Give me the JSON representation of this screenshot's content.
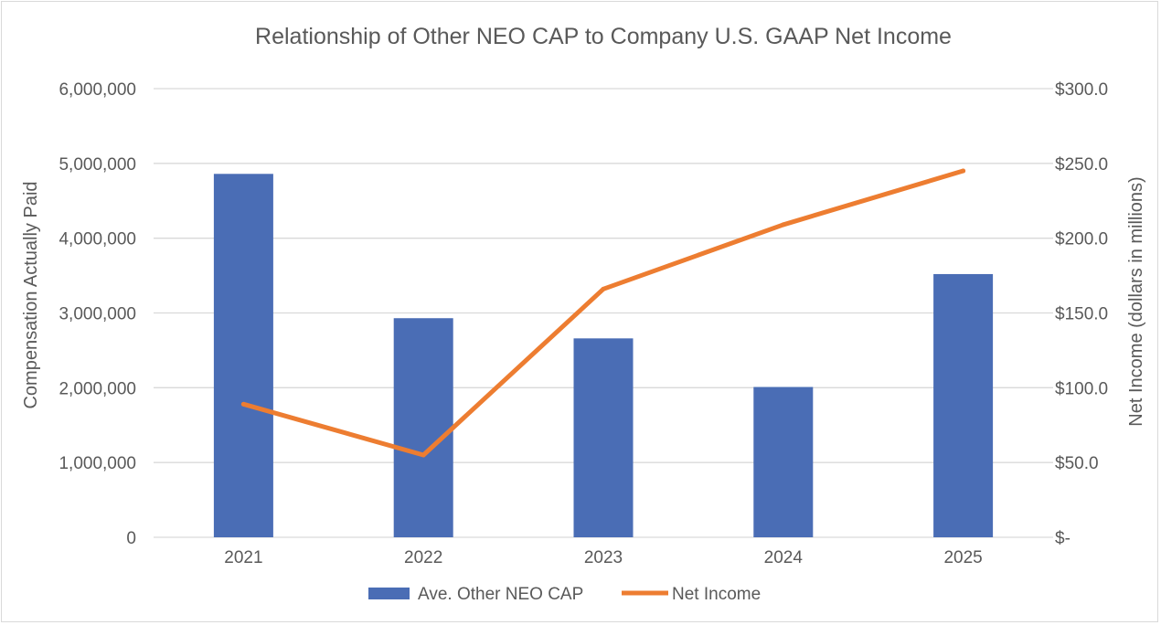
{
  "chart_data": {
    "type": "bar",
    "title": "Relationship of Other NEO CAP to Company U.S. GAAP Net Income",
    "categories": [
      "2021",
      "2022",
      "2023",
      "2024",
      "2025"
    ],
    "series": [
      {
        "name": "Ave. Other NEO CAP",
        "type": "bar",
        "axis": "left",
        "values": [
          4860000,
          2930000,
          2660000,
          2010000,
          3520000
        ]
      },
      {
        "name": "Net Income",
        "type": "line",
        "axis": "right",
        "values": [
          89,
          55,
          166,
          209,
          245
        ]
      }
    ],
    "ylabel": "Compensation Actually Paid",
    "y2label": "Net Income (dollars in millions)",
    "ylim": [
      0,
      6000000
    ],
    "y2lim": [
      0,
      300
    ],
    "yticks": [
      "0",
      "1,000,000",
      "2,000,000",
      "3,000,000",
      "4,000,000",
      "5,000,000",
      "6,000,000"
    ],
    "y2ticks": [
      "$-",
      "$50.0",
      "$100.0",
      "$150.0",
      "$200.0",
      "$250.0",
      "$300.0"
    ],
    "grid": true,
    "legend_position": "bottom",
    "colors": {
      "bar": "#4a6db5",
      "line": "#ed7d31",
      "grid": "#d9d9d9",
      "text": "#595959"
    }
  }
}
